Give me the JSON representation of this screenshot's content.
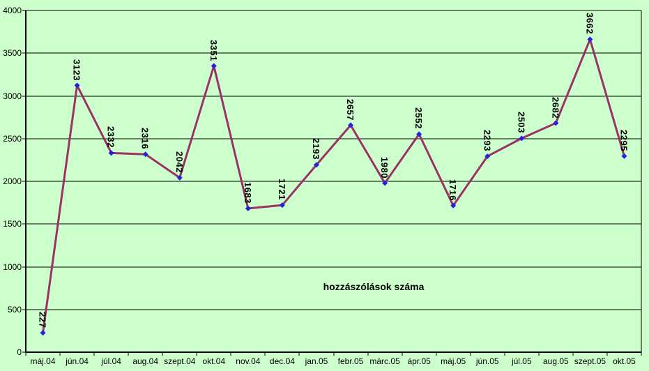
{
  "chart_data": {
    "type": "line",
    "title": "hozzászólások száma",
    "categories": [
      "máj.04",
      "jún.04",
      "júl.04",
      "aug.04",
      "szept.04",
      "okt.04",
      "nov.04",
      "dec.04",
      "jan.05",
      "febr.05",
      "márc.05",
      "ápr.05",
      "máj.05",
      "jún.05",
      "júl.05",
      "aug.05",
      "szept.05",
      "okt.05"
    ],
    "values": [
      227,
      3123,
      2332,
      2316,
      2042,
      3351,
      1683,
      1721,
      2193,
      2657,
      1980,
      2552,
      1716,
      2293,
      2503,
      2682,
      3662,
      2295
    ],
    "data_labels_shown": true,
    "data_label_rotation_deg": 90,
    "xlabel": "",
    "ylabel": "",
    "ylim": [
      0,
      4000
    ],
    "y_tick_interval": 500,
    "y_tick_labels": [
      "0",
      "500",
      "1000",
      "1500",
      "2000",
      "2500",
      "3000",
      "3500",
      "4000"
    ],
    "grid": "horizontal",
    "legend": "none",
    "colors": {
      "background": "#ccffcc",
      "series_line": "#993366",
      "marker": "#2222e0",
      "gridline": "#000000",
      "axis": "#000000",
      "text": "#000000"
    },
    "marker_shape": "diamond"
  }
}
